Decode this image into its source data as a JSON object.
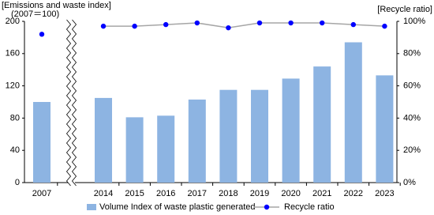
{
  "chart_data": {
    "type": "bar_line",
    "y_axis_title": [
      "[Emissions and waste index]",
      "(2007＝100)"
    ],
    "y2_axis_title": "[Recycle ratio]",
    "categories": [
      "2007",
      "2014",
      "2015",
      "2016",
      "2017",
      "2018",
      "2019",
      "2020",
      "2021",
      "2022",
      "2023"
    ],
    "axis_break": true,
    "series": [
      {
        "name": "Volume Index of waste plastic generated",
        "type": "bar",
        "color": "#8db4e2",
        "values": [
          100,
          105,
          81,
          83,
          103,
          115,
          115,
          129,
          144,
          174,
          133
        ]
      },
      {
        "name": "Recycle ratio",
        "type": "line",
        "axis": "y2",
        "color": "#0000ff",
        "line_color": "#a6a6a6",
        "values": [
          92,
          97,
          97,
          98,
          99,
          96,
          99,
          99,
          99,
          98,
          97
        ]
      }
    ],
    "ylim": [
      0,
      200
    ],
    "yticks": [
      0,
      40,
      80,
      120,
      160,
      200
    ],
    "y2lim": [
      0,
      100
    ],
    "y2ticks": [
      {
        "value": 0,
        "label": "0%"
      },
      {
        "value": 20,
        "label": "20%"
      },
      {
        "value": 40,
        "label": "40%"
      },
      {
        "value": 60,
        "label": "60%"
      },
      {
        "value": 80,
        "label": "80%"
      },
      {
        "value": 100,
        "label": "100%"
      }
    ],
    "grid": false
  }
}
